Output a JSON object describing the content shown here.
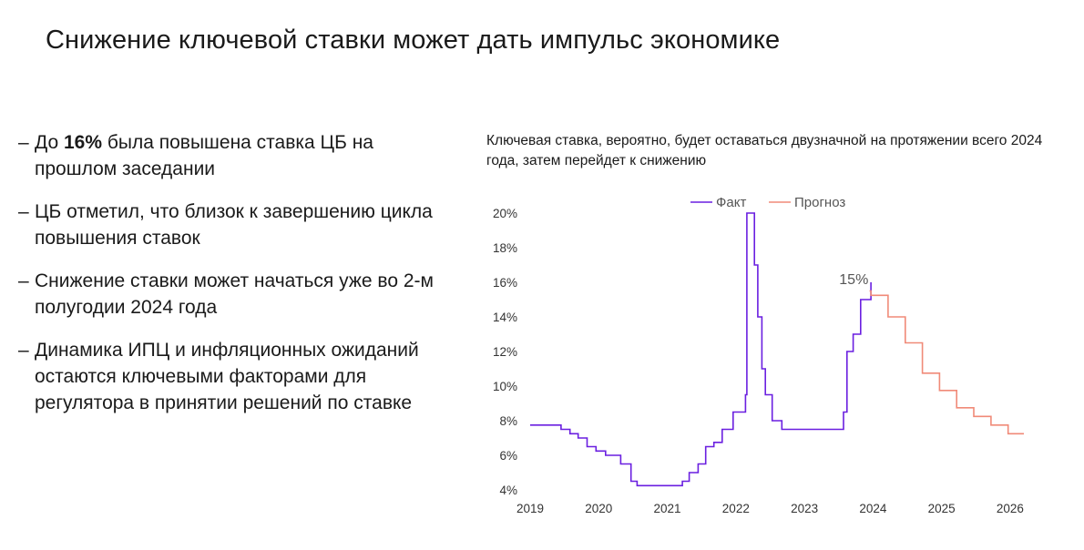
{
  "title": "Снижение ключевой ставки может дать импульс экономике",
  "bullets": [
    {
      "prefix": "До ",
      "bold": "16%",
      "text": " была повышена ставка ЦБ на прошлом заседании"
    },
    {
      "prefix": "",
      "bold": "",
      "text": "ЦБ отметил, что близок к завершению цикла повышения ставок"
    },
    {
      "prefix": "",
      "bold": "",
      "text": "Снижение ставки может начаться уже во 2-м полугодии 2024 года"
    },
    {
      "prefix": "",
      "bold": "",
      "text": "Динамика ИПЦ и инфляционных ожиданий остаются ключевыми факторами для регулятора в принятии решений по ставке"
    }
  ],
  "bullet_dash": "–",
  "chart_data": {
    "type": "line",
    "title": "Ключевая ставка, вероятно, будет оставаться двузначной на протяжении всего 2024 года, затем перейдет к снижению",
    "xlim": [
      2019.0,
      2026.2
    ],
    "ylim": [
      4,
      20
    ],
    "x_ticks": [
      2019,
      2020,
      2021,
      2022,
      2023,
      2024,
      2025,
      2026
    ],
    "x_tick_labels": [
      "2019",
      "2020",
      "2021",
      "2022",
      "2023",
      "2024",
      "2025",
      "2026"
    ],
    "y_ticks": [
      4,
      6,
      8,
      10,
      12,
      14,
      16,
      18,
      20
    ],
    "y_tick_labels": [
      "4%",
      "6%",
      "8%",
      "10%",
      "12%",
      "14%",
      "16%",
      "18%",
      "20%"
    ],
    "grid": false,
    "legend_position": "top-center",
    "series": [
      {
        "name": "Факт",
        "color": "#6a1fe0",
        "step": true,
        "points": [
          [
            2019.0,
            7.75
          ],
          [
            2019.45,
            7.5
          ],
          [
            2019.58,
            7.25
          ],
          [
            2019.7,
            7.0
          ],
          [
            2019.83,
            6.5
          ],
          [
            2019.96,
            6.25
          ],
          [
            2020.1,
            6.0
          ],
          [
            2020.32,
            5.5
          ],
          [
            2020.47,
            4.5
          ],
          [
            2020.56,
            4.25
          ],
          [
            2021.22,
            4.5
          ],
          [
            2021.32,
            5.0
          ],
          [
            2021.45,
            5.5
          ],
          [
            2021.56,
            6.5
          ],
          [
            2021.68,
            6.75
          ],
          [
            2021.8,
            7.5
          ],
          [
            2021.96,
            8.5
          ],
          [
            2022.14,
            9.5
          ],
          [
            2022.16,
            20.0
          ],
          [
            2022.27,
            17.0
          ],
          [
            2022.32,
            14.0
          ],
          [
            2022.38,
            11.0
          ],
          [
            2022.43,
            9.5
          ],
          [
            2022.53,
            8.0
          ],
          [
            2022.67,
            7.5
          ],
          [
            2023.57,
            8.5
          ],
          [
            2023.62,
            12.0
          ],
          [
            2023.71,
            13.0
          ],
          [
            2023.82,
            15.0
          ],
          [
            2023.97,
            16.0
          ]
        ]
      },
      {
        "name": "Прогноз",
        "color": "#f08a78",
        "step": true,
        "points": [
          [
            2023.95,
            15.5
          ],
          [
            2023.97,
            15.25
          ],
          [
            2024.22,
            14.0
          ],
          [
            2024.47,
            12.5
          ],
          [
            2024.72,
            10.75
          ],
          [
            2024.97,
            9.75
          ],
          [
            2025.22,
            8.75
          ],
          [
            2025.47,
            8.25
          ],
          [
            2025.72,
            7.75
          ],
          [
            2025.97,
            7.25
          ],
          [
            2026.2,
            7.25
          ]
        ]
      }
    ],
    "annotations": [
      {
        "text": "15%",
        "x": 2023.72,
        "y": 15.9
      }
    ]
  }
}
